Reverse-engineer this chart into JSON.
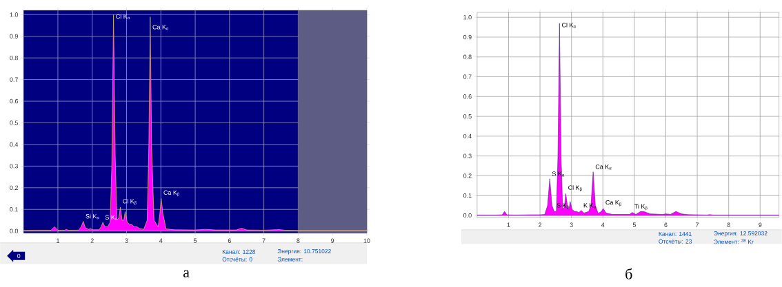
{
  "chart_data": [
    {
      "type": "area",
      "title": "а",
      "color": "#ff00ff",
      "x": [
        0,
        0.3,
        0.8,
        0.9,
        1.0,
        1.2,
        1.25,
        1.3,
        1.6,
        1.68,
        1.74,
        1.8,
        1.9,
        1.95,
        2.0,
        2.2,
        2.26,
        2.31,
        2.37,
        2.45,
        2.52,
        2.57,
        2.62,
        2.67,
        2.72,
        2.77,
        2.82,
        2.87,
        2.92,
        2.96,
        3.02,
        3.1,
        3.15,
        3.22,
        3.3,
        3.38,
        3.5,
        3.6,
        3.65,
        3.69,
        3.73,
        3.8,
        3.92,
        3.97,
        4.01,
        4.06,
        4.15,
        4.4,
        5.0,
        5.3,
        5.6,
        6.2,
        6.35,
        6.5,
        7.0,
        7.45,
        7.6,
        8.0,
        9.0,
        10.0
      ],
      "values": [
        0.003,
        0.004,
        0.004,
        0.02,
        0.004,
        0.004,
        0.008,
        0.004,
        0.004,
        0.02,
        0.045,
        0.015,
        0.008,
        0.012,
        0.006,
        0.006,
        0.02,
        0.04,
        0.02,
        0.02,
        0.04,
        0.3,
        1.0,
        0.35,
        0.05,
        0.06,
        0.11,
        0.05,
        0.05,
        0.09,
        0.04,
        0.03,
        0.03,
        0.02,
        0.02,
        0.012,
        0.008,
        0.05,
        0.4,
        0.99,
        0.4,
        0.05,
        0.02,
        0.08,
        0.15,
        0.08,
        0.01,
        0.006,
        0.005,
        0.008,
        0.005,
        0.005,
        0.013,
        0.005,
        0.004,
        0.007,
        0.004,
        0.003,
        0.003,
        0.003
      ],
      "xlim": [
        0,
        10
      ],
      "ylim": [
        -0.01,
        1.02
      ],
      "xticks": [
        1,
        2,
        3,
        4,
        5,
        6,
        7,
        8,
        9,
        10
      ],
      "yticks": [
        {
          "value": 0,
          "label": "0.0"
        },
        {
          "value": 0.1,
          "label": "0.1"
        },
        {
          "value": 0.2,
          "label": "0.2"
        },
        {
          "value": 0.3,
          "label": "0.3"
        },
        {
          "value": 0.4,
          "label": "0.4"
        },
        {
          "value": 0.5,
          "label": "0.5"
        },
        {
          "value": 0.6,
          "label": "0.6"
        },
        {
          "value": 0.7,
          "label": "0.7"
        },
        {
          "value": 0.8,
          "label": "0.8"
        },
        {
          "value": 0.9,
          "label": "0.9"
        },
        {
          "value": 1.0,
          "label": "1.0"
        }
      ],
      "grid": true,
      "bands": [
        {
          "axis": "x",
          "from": 8,
          "to": 10,
          "color": "#5c5c84"
        }
      ],
      "annotations": [
        {
          "text": "Cl K$_{α}$",
          "x": 2.62,
          "y": 1.0
        },
        {
          "text": "Ca K$_{α}$",
          "x": 3.69,
          "y": 0.95
        },
        {
          "text": "Si K$_{α}$",
          "x": 1.74,
          "y": 0.045
        },
        {
          "text": "S K$_{α}$",
          "x": 2.31,
          "y": 0.04
        },
        {
          "text": "Cl K$_{β}$",
          "x": 2.82,
          "y": 0.11
        },
        {
          "text": "Ca K$_{β}$",
          "x": 4.01,
          "y": 0.15
        },
        "Канал: 1228",
        "Отсчёты: 0",
        "Энергия: 10.751022",
        "Элемент:",
        "0"
      ]
    },
    {
      "type": "area",
      "title": "б",
      "color": "#ff00ff",
      "x": [
        0,
        0.6,
        0.8,
        0.87,
        0.95,
        1.2,
        1.7,
        2.0,
        2.15,
        2.24,
        2.31,
        2.38,
        2.45,
        2.52,
        2.57,
        2.62,
        2.67,
        2.72,
        2.77,
        2.82,
        2.88,
        2.92,
        2.96,
        3.02,
        3.1,
        3.16,
        3.24,
        3.31,
        3.4,
        3.55,
        3.62,
        3.69,
        3.76,
        3.85,
        3.95,
        4.01,
        4.1,
        4.3,
        4.85,
        4.93,
        5.05,
        5.2,
        5.3,
        5.5,
        5.9,
        6.0,
        6.15,
        6.32,
        6.5,
        6.7,
        7.3,
        7.4,
        7.5,
        8.3,
        9.6
      ],
      "values": [
        0.002,
        0.002,
        0.003,
        0.02,
        0.003,
        0.002,
        0.003,
        0.003,
        0.005,
        0.05,
        0.185,
        0.05,
        0.02,
        0.02,
        0.3,
        0.97,
        0.3,
        0.03,
        0.04,
        0.11,
        0.04,
        0.03,
        0.07,
        0.03,
        0.02,
        0.02,
        0.015,
        0.025,
        0.012,
        0.02,
        0.05,
        0.22,
        0.05,
        0.01,
        0.02,
        0.035,
        0.012,
        0.005,
        0.005,
        0.015,
        0.005,
        0.02,
        0.02,
        0.008,
        0.005,
        0.008,
        0.005,
        0.02,
        0.008,
        0.004,
        0.002,
        0.004,
        0.002,
        0.002,
        0.002
      ],
      "xlim": [
        0,
        9.6
      ],
      "ylim": [
        -0.01,
        1.025
      ],
      "xticks": [
        1,
        2,
        3,
        4,
        5,
        6,
        7,
        8,
        9
      ],
      "yticks": [
        {
          "value": 0,
          "label": "0.0"
        },
        {
          "value": 0.1,
          "label": "0.1"
        },
        {
          "value": 0.2,
          "label": "0.2"
        },
        {
          "value": 0.3,
          "label": "0.3"
        },
        {
          "value": 0.4,
          "label": "0.4"
        },
        {
          "value": 0.5,
          "label": "0.5"
        },
        {
          "value": 0.6,
          "label": "0.6"
        },
        {
          "value": 0.7,
          "label": "0.7"
        },
        {
          "value": 0.8,
          "label": "0.8"
        },
        {
          "value": 0.9,
          "label": "0.9"
        },
        {
          "value": 1.0,
          "label": "1.0"
        }
      ],
      "grid": true,
      "annotations": [
        {
          "text": "Cl K$_{α}$",
          "x": 2.62,
          "y": 0.97
        },
        {
          "text": "S K$_{α}$",
          "x": 2.31,
          "y": 0.185
        },
        {
          "text": "S K$_{β}$",
          "x": 2.46,
          "y": 0.02
        },
        {
          "text": "Cl K$_{β}$",
          "x": 2.82,
          "y": 0.11
        },
        {
          "text": "K K$_{α}$",
          "x": 3.31,
          "y": 0.025
        },
        {
          "text": "Ca K$_{α}$",
          "x": 3.69,
          "y": 0.22
        },
        {
          "text": "Ca K$_{β}$",
          "x": 4.01,
          "y": 0.035
        },
        {
          "text": "Ti K$_{β}$",
          "x": 4.93,
          "y": 0.015
        },
        "Канал: 1441",
        "Отсчёты: 23",
        "Энергия: 12.592032",
        "Элемент: $^{38}$ Kr"
      ]
    }
  ]
}
